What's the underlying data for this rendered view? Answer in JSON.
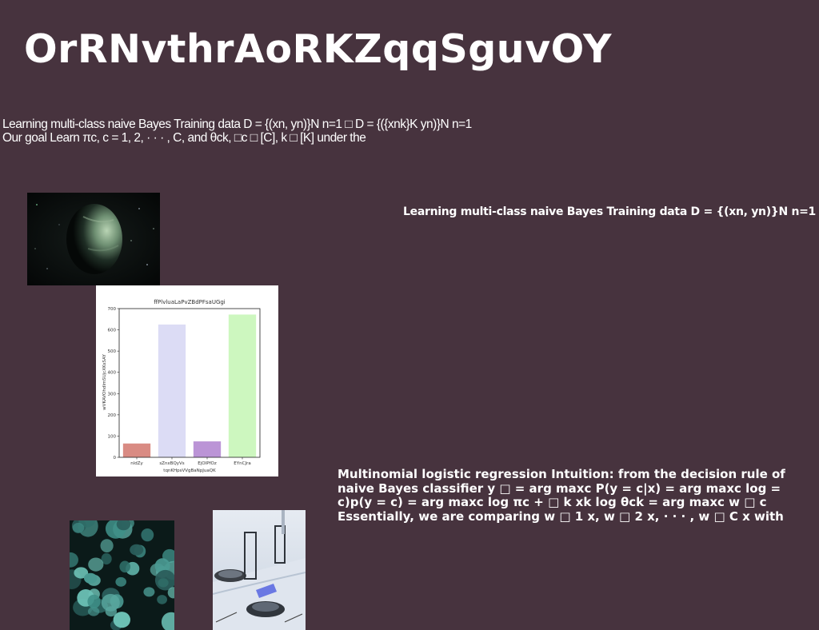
{
  "page": {
    "title": "OrRNvthrAoRKZqqSguvOY",
    "intro": "Learning multi-class naive Bayes Training data D = {(xn, yn)}N n=1 □ D = {({xnk}K yn)}N n=1 Our goal Learn πc, c = 1, 2, · · · , C, and θck, □c □ [C], k □ [K] under the",
    "right_heading": "Learning multi-class naive Bayes Training data D = {(xn, yn)}N n=1",
    "mlr_text": "Multinomial logistic regression Intuition: from the decision rule of naive Bayes classifier y □ = arg maxc P(y = c|x) = arg maxc log = c)p(y = c) = arg maxc log πc + □ k xk log θck = arg maxc w □ c Essentially, we are comparing w □ 1 x, w □ 2 x, · · · , w □ C x with"
  },
  "chart_data": {
    "type": "bar",
    "title": "ffPlvluaLaPvZBdPFsaUGgi",
    "xlabel": "tqnKHpsVVgBaNpJuaQK",
    "ylabel": "wVKAVOhdlmSUjcXKsSAY",
    "categories": [
      "nldZy",
      "sZnxBQyVs",
      "EjOIPfOz",
      "EYnCJra"
    ],
    "values": [
      65,
      625,
      75,
      672
    ],
    "colors": [
      "#d98b83",
      "#dcdcf5",
      "#bb94d6",
      "#cdf7bf"
    ],
    "ylim": [
      0,
      700
    ],
    "yticks": [
      0,
      100,
      200,
      300,
      400,
      500,
      600,
      700
    ],
    "grid": false,
    "legend": "none"
  }
}
